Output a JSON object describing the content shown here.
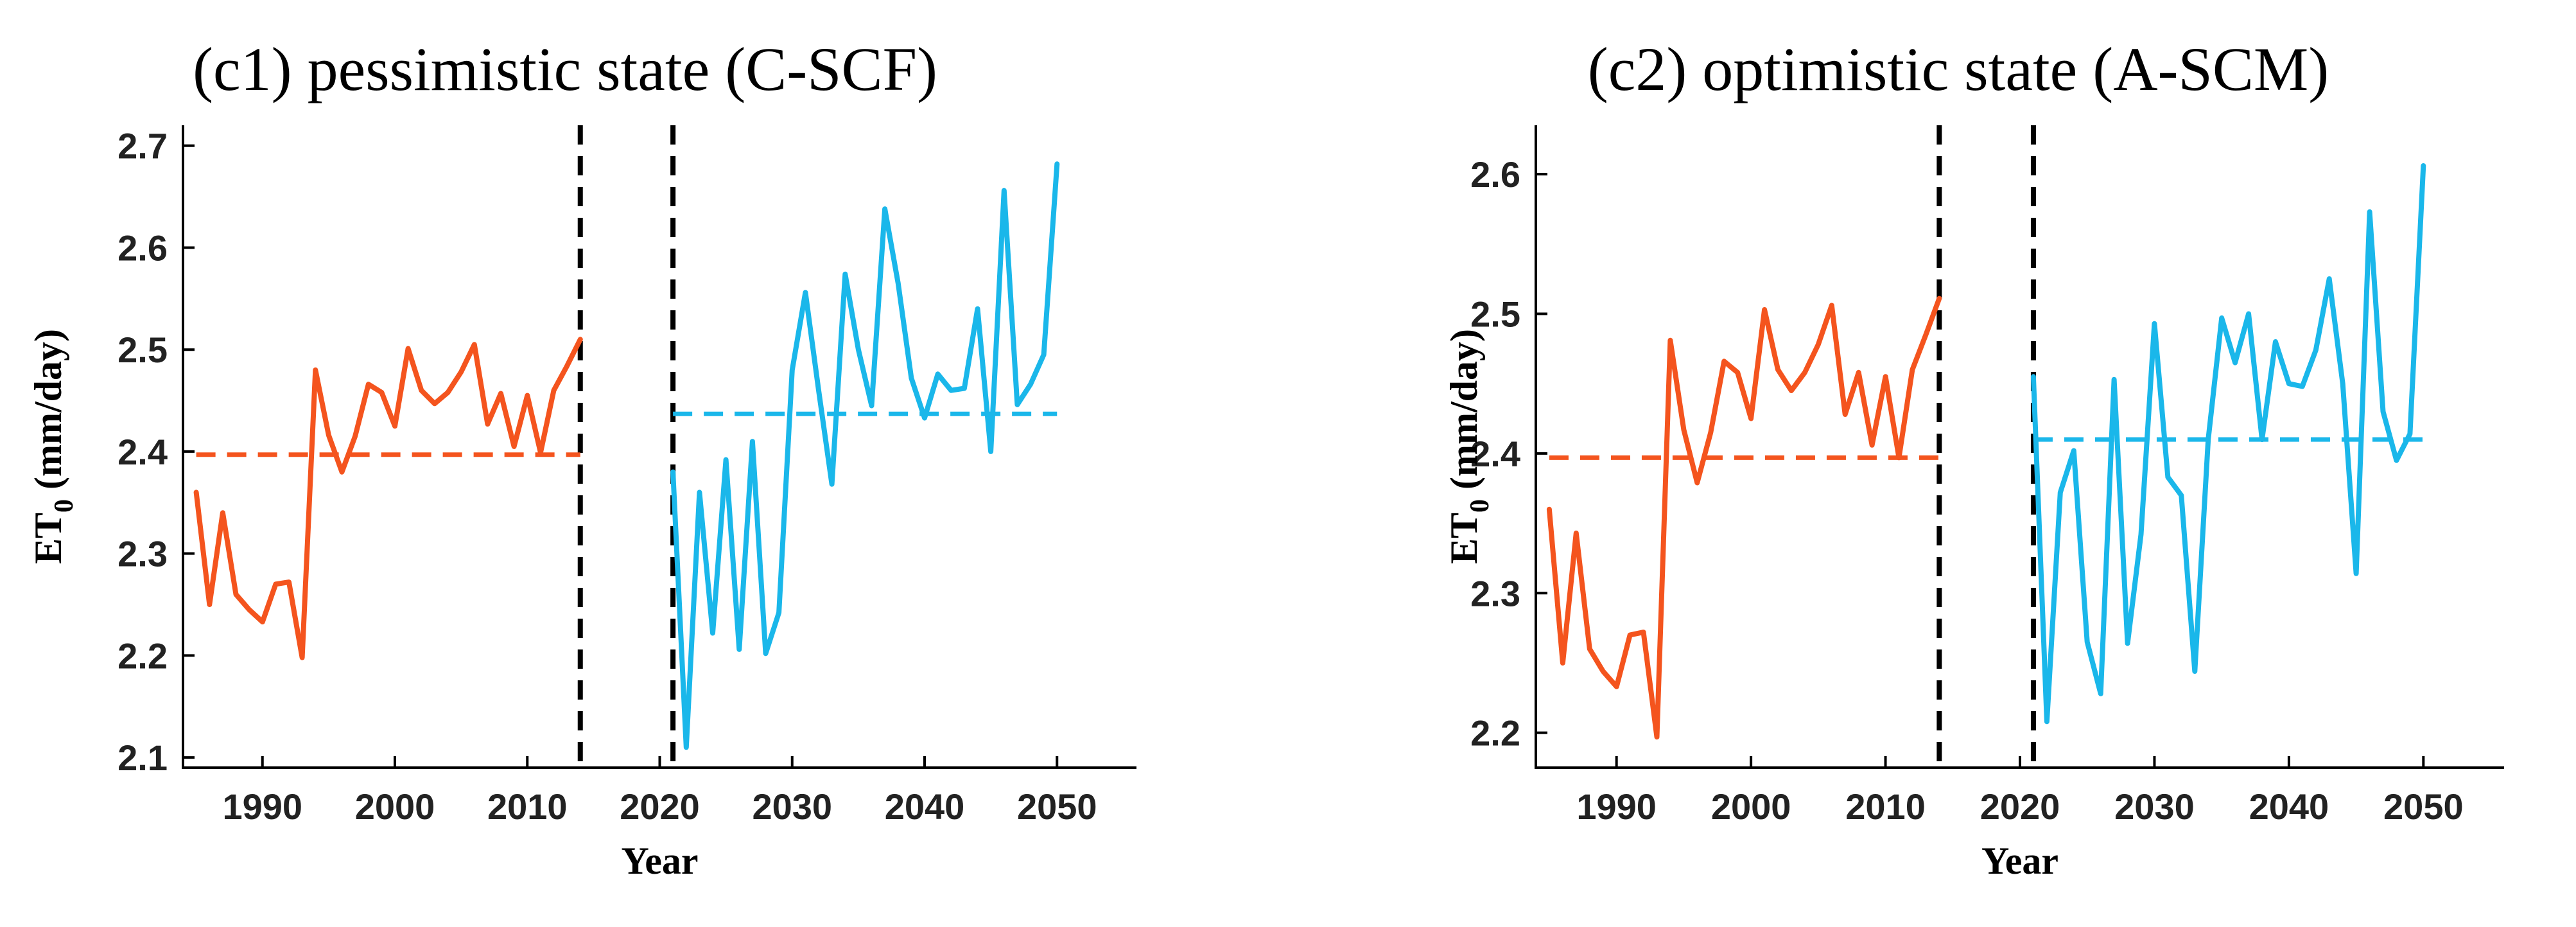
{
  "chart_data": [
    {
      "type": "line",
      "title": "(c1) pessimistic state (C-SCF)",
      "xlabel": "Year",
      "ylabel": "ET",
      "ylabel_sub": "0",
      "ylabel_unit": " (mm/day)",
      "xlim": [
        1984,
        2056
      ],
      "ylim": [
        2.09,
        2.72
      ],
      "xticks": [
        1990,
        2000,
        2010,
        2020,
        2030,
        2040,
        2050
      ],
      "yticks": [
        2.1,
        2.2,
        2.3,
        2.4,
        2.5,
        2.6,
        2.7
      ],
      "ytick_decimals": 1,
      "grid": false,
      "vlines": [
        2014,
        2021
      ],
      "series": [
        {
          "color": "#f4541e",
          "x": [
            1985,
            1986,
            1987,
            1988,
            1989,
            1990,
            1991,
            1992,
            1993,
            1994,
            1995,
            1996,
            1997,
            1998,
            1999,
            2000,
            2001,
            2002,
            2003,
            2004,
            2005,
            2006,
            2007,
            2008,
            2009,
            2010,
            2011,
            2012,
            2013,
            2014
          ],
          "values": [
            2.36,
            2.25,
            2.34,
            2.26,
            2.245,
            2.233,
            2.27,
            2.272,
            2.198,
            2.48,
            2.416,
            2.38,
            2.415,
            2.466,
            2.458,
            2.425,
            2.501,
            2.46,
            2.447,
            2.458,
            2.478,
            2.505,
            2.427,
            2.457,
            2.405,
            2.455,
            2.399,
            2.46,
            2.484,
            2.51
          ]
        },
        {
          "color": "#1ab7ea",
          "x": [
            2021,
            2022,
            2023,
            2024,
            2025,
            2026,
            2027,
            2028,
            2029,
            2030,
            2031,
            2032,
            2033,
            2034,
            2035,
            2036,
            2037,
            2038,
            2039,
            2040,
            2041,
            2042,
            2043,
            2044,
            2045,
            2046,
            2047,
            2048,
            2049,
            2050
          ],
          "values": [
            2.38,
            2.11,
            2.36,
            2.222,
            2.392,
            2.206,
            2.41,
            2.202,
            2.242,
            2.48,
            2.556,
            2.46,
            2.368,
            2.574,
            2.5,
            2.445,
            2.638,
            2.565,
            2.472,
            2.433,
            2.476,
            2.46,
            2.462,
            2.54,
            2.4,
            2.656,
            2.446,
            2.466,
            2.495,
            2.682
          ]
        }
      ],
      "means": [
        {
          "color": "#f4541e",
          "x": [
            1985,
            2014
          ],
          "value": 2.397
        },
        {
          "color": "#1ab7ea",
          "x": [
            2021,
            2050
          ],
          "value": 2.437
        }
      ]
    },
    {
      "type": "line",
      "title": "(c2) optimistic state (A-SCM)",
      "xlabel": "Year",
      "ylabel": "ET",
      "ylabel_sub": "0",
      "ylabel_unit": " (mm/day)",
      "xlim": [
        1984,
        2056
      ],
      "ylim": [
        2.175,
        2.635
      ],
      "xticks": [
        1990,
        2000,
        2010,
        2020,
        2030,
        2040,
        2050
      ],
      "yticks": [
        2.2,
        2.3,
        2.4,
        2.5,
        2.6
      ],
      "ytick_decimals": 1,
      "grid": false,
      "vlines": [
        2014,
        2021
      ],
      "series": [
        {
          "color": "#f4541e",
          "x": [
            1985,
            1986,
            1987,
            1988,
            1989,
            1990,
            1991,
            1992,
            1993,
            1994,
            1995,
            1996,
            1997,
            1998,
            1999,
            2000,
            2001,
            2002,
            2003,
            2004,
            2005,
            2006,
            2007,
            2008,
            2009,
            2010,
            2011,
            2012,
            2013,
            2014
          ],
          "values": [
            2.36,
            2.25,
            2.343,
            2.26,
            2.244,
            2.233,
            2.27,
            2.272,
            2.197,
            2.481,
            2.417,
            2.379,
            2.415,
            2.466,
            2.458,
            2.425,
            2.503,
            2.46,
            2.445,
            2.458,
            2.478,
            2.506,
            2.428,
            2.458,
            2.406,
            2.455,
            2.397,
            2.46,
            2.485,
            2.511
          ]
        },
        {
          "color": "#1ab7ea",
          "x": [
            2021,
            2022,
            2023,
            2024,
            2025,
            2026,
            2027,
            2028,
            2029,
            2030,
            2031,
            2032,
            2033,
            2034,
            2035,
            2036,
            2037,
            2038,
            2039,
            2040,
            2041,
            2042,
            2043,
            2044,
            2045,
            2046,
            2047,
            2048,
            2049,
            2050
          ],
          "values": [
            2.455,
            2.208,
            2.372,
            2.402,
            2.265,
            2.228,
            2.453,
            2.264,
            2.342,
            2.493,
            2.383,
            2.37,
            2.244,
            2.41,
            2.497,
            2.465,
            2.5,
            2.41,
            2.48,
            2.45,
            2.448,
            2.474,
            2.525,
            2.45,
            2.314,
            2.573,
            2.43,
            2.395,
            2.414,
            2.606
          ]
        }
      ],
      "means": [
        {
          "color": "#f4541e",
          "x": [
            1985,
            2014
          ],
          "value": 2.397
        },
        {
          "color": "#1ab7ea",
          "x": [
            2021,
            2050
          ],
          "value": 2.41
        }
      ]
    }
  ]
}
